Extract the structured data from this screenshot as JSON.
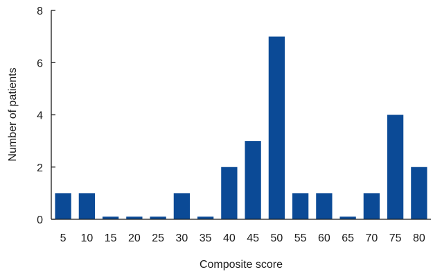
{
  "chart_data": {
    "type": "bar",
    "categories": [
      "5",
      "10",
      "15",
      "20",
      "25",
      "30",
      "35",
      "40",
      "45",
      "50",
      "55",
      "60",
      "65",
      "70",
      "75",
      "80"
    ],
    "values": [
      1,
      1,
      0.1,
      0.1,
      0.1,
      1,
      0.1,
      2,
      3,
      7,
      1,
      1,
      0.1,
      1,
      4,
      2
    ],
    "title": "",
    "xlabel": "Composite score",
    "ylabel": "Number of patients",
    "ylim": [
      0,
      8
    ],
    "yticks": [
      "0",
      "2",
      "4",
      "6",
      "8"
    ],
    "grid": false,
    "legend": "none",
    "bar_color": "#0b4a96"
  }
}
